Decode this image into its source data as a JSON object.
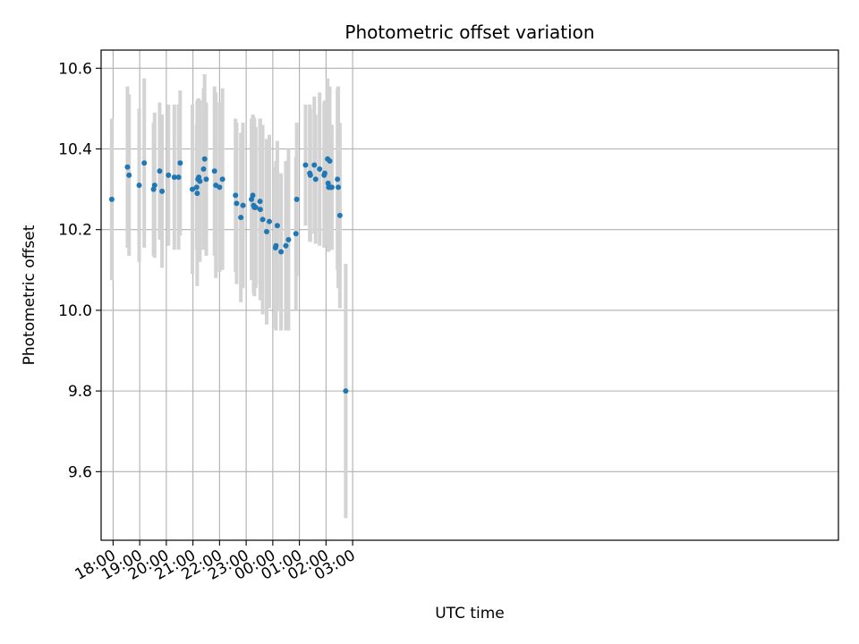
{
  "chart_data": {
    "type": "scatter",
    "title": "Photometric offset variation",
    "xlabel": "UTC time",
    "ylabel": "Photometric offset",
    "xlim": [
      -0.45,
      27.25
    ],
    "ylim": [
      9.43,
      10.645
    ],
    "x_unit": "hours since 18:00 UTC",
    "xticks": [
      0,
      1,
      2,
      3,
      4,
      5,
      6,
      7,
      8,
      9
    ],
    "xtick_labels": [
      "18:00",
      "19:00",
      "20:00",
      "21:00",
      "22:00",
      "23:00",
      "00:00",
      "01:00",
      "02:00",
      "03:00"
    ],
    "yticks": [
      9.6,
      9.8,
      10.0,
      10.2,
      10.4,
      10.6
    ],
    "ytick_labels": [
      "9.6",
      "9.8",
      "10.0",
      "10.2",
      "10.4",
      "10.6"
    ],
    "grid": true,
    "marker_color": "#1f77b4",
    "errorbar_color": "#d3d3d3",
    "series": [
      {
        "name": "offset",
        "x": [
          -0.05,
          0.54,
          0.6,
          0.98,
          1.17,
          1.52,
          1.56,
          1.75,
          1.84,
          2.08,
          2.3,
          2.46,
          2.52,
          2.98,
          3.14,
          3.16,
          3.19,
          3.22,
          3.26,
          3.4,
          3.44,
          3.5,
          3.81,
          3.86,
          4.0,
          4.11,
          4.6,
          4.64,
          4.8,
          4.88,
          5.2,
          5.25,
          5.28,
          5.31,
          5.36,
          5.52,
          5.53,
          5.62,
          5.77,
          5.87,
          6.1,
          6.12,
          6.17,
          6.31,
          6.49,
          6.59,
          6.87,
          6.9,
          7.23,
          7.39,
          7.41,
          7.56,
          7.61,
          7.76,
          7.93,
          7.95,
          8.06,
          8.08,
          8.1,
          8.14,
          8.16,
          8.22,
          8.43,
          8.46,
          8.52,
          8.74
        ],
        "y": [
          10.275,
          10.355,
          10.335,
          10.31,
          10.365,
          10.3,
          10.31,
          10.345,
          10.295,
          10.335,
          10.33,
          10.33,
          10.365,
          10.3,
          10.305,
          10.29,
          10.325,
          10.33,
          10.32,
          10.35,
          10.375,
          10.325,
          10.345,
          10.31,
          10.305,
          10.325,
          10.285,
          10.265,
          10.23,
          10.26,
          10.275,
          10.285,
          10.26,
          10.255,
          10.255,
          10.27,
          10.25,
          10.225,
          10.195,
          10.22,
          10.155,
          10.16,
          10.21,
          10.145,
          10.16,
          10.175,
          10.19,
          10.275,
          10.36,
          10.34,
          10.335,
          10.36,
          10.325,
          10.35,
          10.335,
          10.34,
          10.375,
          10.315,
          10.305,
          10.37,
          10.305,
          10.305,
          10.325,
          10.305,
          10.235,
          9.8
        ],
        "yerr": [
          0.2,
          0.2,
          0.2,
          0.19,
          0.21,
          0.165,
          0.18,
          0.17,
          0.19,
          0.175,
          0.18,
          0.18,
          0.18,
          0.21,
          0.155,
          0.23,
          0.2,
          0.195,
          0.2,
          0.2,
          0.21,
          0.19,
          0.21,
          0.23,
          0.21,
          0.225,
          0.19,
          0.2,
          0.21,
          0.205,
          0.2,
          0.2,
          0.22,
          0.22,
          0.2,
          0.205,
          0.225,
          0.235,
          0.23,
          0.215,
          0.2,
          0.21,
          0.21,
          0.195,
          0.21,
          0.225,
          0.19,
          0.19,
          0.15,
          0.17,
          0.165,
          0.17,
          0.16,
          0.19,
          0.18,
          0.18,
          0.2,
          0.17,
          0.16,
          0.185,
          0.15,
          0.155,
          0.225,
          0.25,
          0.23,
          0.315
        ]
      }
    ]
  }
}
